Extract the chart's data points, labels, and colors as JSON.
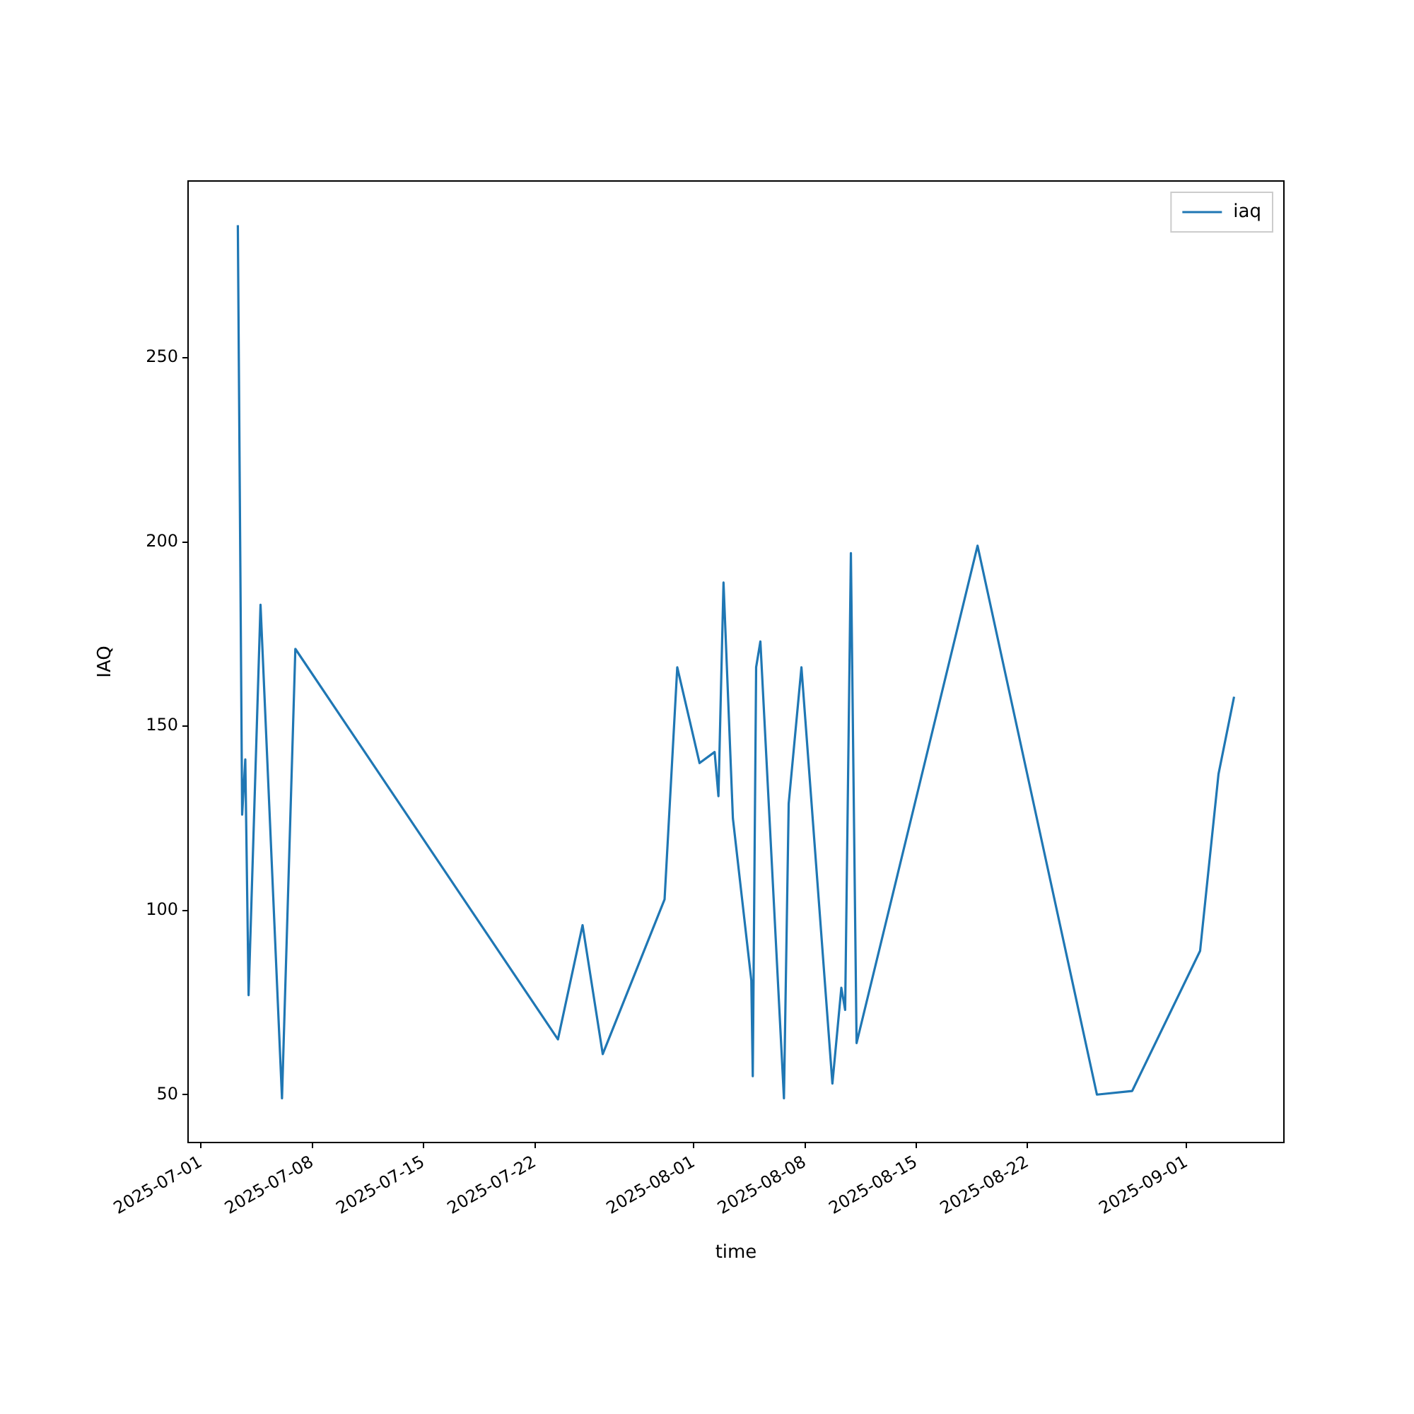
{
  "chart_data": {
    "type": "line",
    "xlabel": "time",
    "ylabel": "IAQ",
    "x": [
      "2025-07-03T07:30",
      "2025-07-03T14:00",
      "2025-07-03T18:45",
      "2025-07-03T23:45",
      "2025-07-04T17:45",
      "2025-07-06T02:10",
      "2025-07-06T22:20",
      "2025-07-23T10:50",
      "2025-07-25T00:00",
      "2025-07-26T06:30",
      "2025-07-30T03:50",
      "2025-07-30T23:00",
      "2025-08-01T08:40",
      "2025-08-02T07:25",
      "2025-08-02T13:10",
      "2025-08-02T20:50",
      "2025-08-03T11:00",
      "2025-08-04T14:50",
      "2025-08-04T17:00",
      "2025-08-04T22:05",
      "2025-08-05T04:30",
      "2025-08-06T16:05",
      "2025-08-06T23:15",
      "2025-08-07T18:30",
      "2025-08-09T17:15",
      "2025-08-10T06:45",
      "2025-08-10T12:30",
      "2025-08-10T21:10",
      "2025-08-11T05:45",
      "2025-08-18T20:25",
      "2025-08-26T08:40",
      "2025-08-28T13:55",
      "2025-09-01T20:25",
      "2025-09-03T00:15",
      "2025-09-03T23:45"
    ],
    "series": [
      {
        "name": "iaq",
        "color": "#1f77b4",
        "values": [
          286,
          126,
          141,
          77,
          183,
          49,
          171,
          65,
          96,
          61,
          103,
          166,
          140,
          143,
          131,
          189,
          125,
          81,
          55,
          166,
          173,
          49,
          129,
          166,
          53,
          79,
          73,
          197,
          64,
          199,
          50,
          51,
          89,
          137,
          158
        ]
      }
    ],
    "xlim": [
      "2025-06-30T04:20",
      "2025-09-07T03:00"
    ],
    "xticks": [
      "2025-07-01",
      "2025-07-08",
      "2025-07-15",
      "2025-07-22",
      "2025-08-01",
      "2025-08-08",
      "2025-08-15",
      "2025-08-22",
      "2025-09-01"
    ],
    "ylim": [
      37,
      298
    ],
    "yticks": [
      50,
      100,
      150,
      200,
      250
    ],
    "grid": false,
    "legend": "top right",
    "marker": "none",
    "line_style": "solid"
  }
}
